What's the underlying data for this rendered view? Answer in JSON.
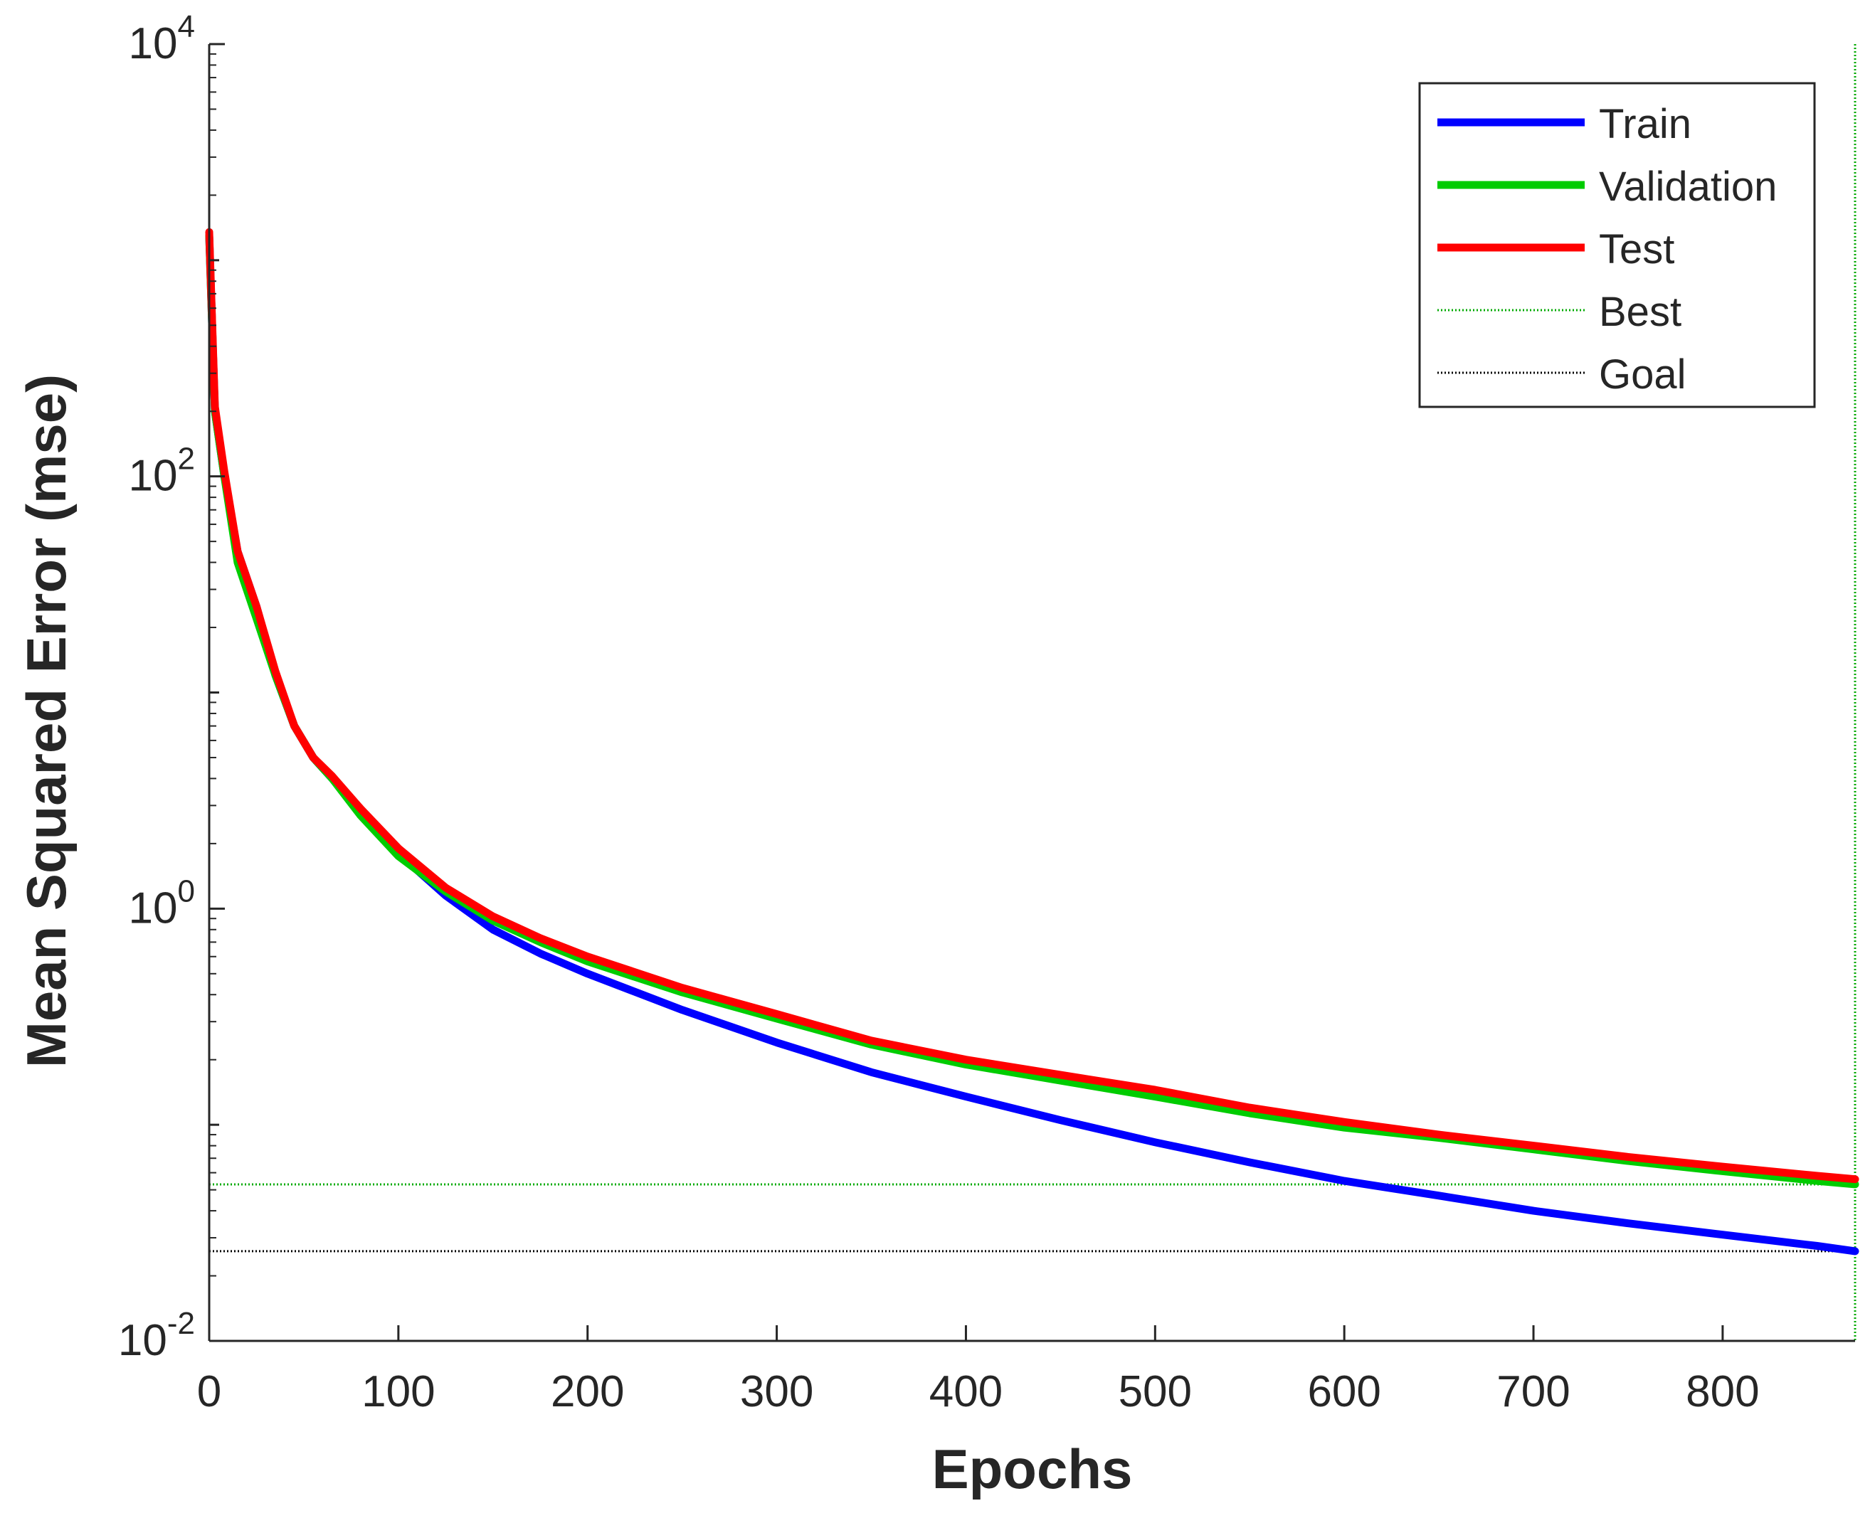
{
  "chart_data": {
    "type": "line",
    "xlabel": "Epochs",
    "ylabel": "Mean Squared Error  (mse)",
    "xlim": [
      0,
      870
    ],
    "ylim": [
      0.01,
      10000
    ],
    "yscale": "log",
    "grid": false,
    "legend_position": "top-right",
    "x_ticks": [
      0,
      100,
      200,
      300,
      400,
      500,
      600,
      700,
      800
    ],
    "x_tick_labels": [
      "0",
      "100",
      "200",
      "300",
      "400",
      "500",
      "600",
      "700",
      "800"
    ],
    "y_ticks": [
      0.01,
      1,
      100,
      10000
    ],
    "y_tick_labels": [
      {
        "base": "10",
        "exp": "-2"
      },
      {
        "base": "10",
        "exp": "0"
      },
      {
        "base": "10",
        "exp": "2"
      },
      {
        "base": "10",
        "exp": "4"
      }
    ],
    "series": [
      {
        "name": "Train",
        "color": "#0000ff",
        "style": "solid",
        "x": [
          0,
          3,
          8,
          15,
          25,
          35,
          45,
          55,
          65,
          80,
          100,
          125,
          150,
          175,
          200,
          250,
          300,
          350,
          400,
          450,
          500,
          550,
          600,
          650,
          700,
          750,
          800,
          850,
          870
        ],
        "y": [
          1300,
          200,
          100,
          45,
          25,
          12,
          7,
          5,
          4,
          2.8,
          1.8,
          1.15,
          0.8,
          0.62,
          0.5,
          0.34,
          0.24,
          0.175,
          0.135,
          0.105,
          0.083,
          0.067,
          0.055,
          0.047,
          0.04,
          0.035,
          0.031,
          0.0275,
          0.026
        ]
      },
      {
        "name": "Validation",
        "color": "#00cc00",
        "style": "solid",
        "x": [
          0,
          3,
          8,
          15,
          25,
          35,
          45,
          55,
          65,
          80,
          100,
          125,
          150,
          175,
          200,
          250,
          300,
          350,
          400,
          450,
          500,
          550,
          600,
          650,
          700,
          750,
          800,
          850,
          870
        ],
        "y": [
          1300,
          200,
          100,
          40,
          22,
          12,
          7,
          5,
          4,
          2.7,
          1.75,
          1.2,
          0.88,
          0.7,
          0.57,
          0.41,
          0.31,
          0.235,
          0.19,
          0.16,
          0.135,
          0.113,
          0.097,
          0.087,
          0.077,
          0.068,
          0.061,
          0.055,
          0.053
        ]
      },
      {
        "name": "Test",
        "color": "#ff0000",
        "style": "solid",
        "x": [
          0,
          3,
          8,
          15,
          25,
          35,
          45,
          55,
          65,
          80,
          100,
          125,
          150,
          175,
          200,
          250,
          300,
          350,
          400,
          450,
          500,
          550,
          600,
          650,
          700,
          750,
          800,
          850,
          870
        ],
        "y": [
          1350,
          210,
          105,
          45,
          25,
          12.5,
          7,
          5,
          4.1,
          2.9,
          1.9,
          1.25,
          0.92,
          0.73,
          0.6,
          0.43,
          0.325,
          0.245,
          0.2,
          0.17,
          0.145,
          0.12,
          0.103,
          0.09,
          0.08,
          0.071,
          0.064,
          0.058,
          0.056
        ]
      }
    ],
    "reference_lines": [
      {
        "name": "Best",
        "orientation": "horizontal",
        "y": 0.053,
        "color": "#00aa00",
        "style": "dotted"
      },
      {
        "name": "Best",
        "orientation": "vertical",
        "x": 870,
        "color": "#00aa00",
        "style": "dotted"
      },
      {
        "name": "Goal",
        "orientation": "horizontal",
        "y": 0.026,
        "color": "#000000",
        "style": "dotted"
      }
    ],
    "legend": [
      {
        "label": "Train",
        "color": "#0000ff",
        "style": "solid"
      },
      {
        "label": "Validation",
        "color": "#00cc00",
        "style": "solid"
      },
      {
        "label": "Test",
        "color": "#ff0000",
        "style": "solid"
      },
      {
        "label": "Best",
        "color": "#00aa00",
        "style": "dotted"
      },
      {
        "label": "Goal",
        "color": "#000000",
        "style": "dotted"
      }
    ]
  }
}
